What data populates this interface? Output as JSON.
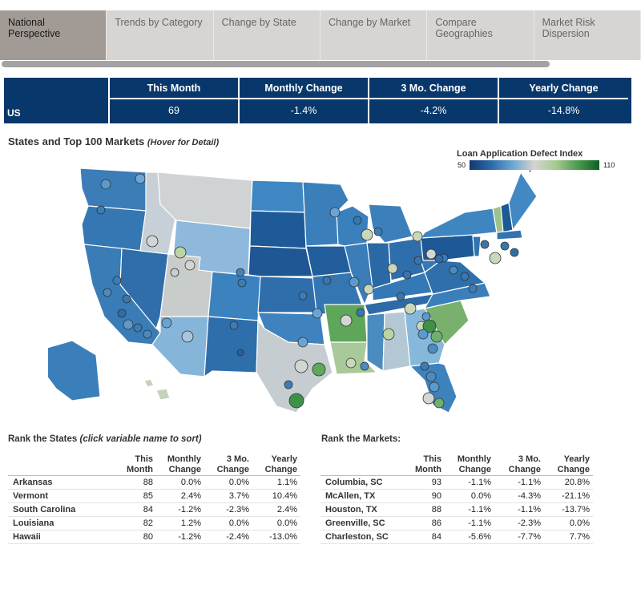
{
  "tabs": [
    {
      "label": "National Perspective",
      "active": true
    },
    {
      "label": "Trends by Category",
      "active": false
    },
    {
      "label": "Change by State",
      "active": false
    },
    {
      "label": "Change  by Market",
      "active": false
    },
    {
      "label": "Compare Geographies",
      "active": false
    },
    {
      "label": "Market Risk Dispersion",
      "active": false
    }
  ],
  "summary": {
    "row_label": "US",
    "columns": [
      {
        "header": "This Month",
        "value": "69"
      },
      {
        "header": "Monthly Change",
        "value": "-1.4%"
      },
      {
        "header": "3 Mo. Change",
        "value": "-4.2%"
      },
      {
        "header": "Yearly Change",
        "value": "-14.8%"
      }
    ]
  },
  "map": {
    "title": "States and Top 100 Markets",
    "hint": "(Hover for Detail)",
    "legend_title": "Loan Application Defect Index",
    "legend_min": "50",
    "legend_max": "110"
  },
  "colors": {
    "navy": "#08386b",
    "tab_active": "#a19a95",
    "tab_inactive": "#d7d4d2"
  },
  "rank_states": {
    "title": "Rank the States",
    "hint": "(click variable name to sort)",
    "headers": {
      "name": "",
      "this_month": "This Month",
      "monthly": "Monthly Change",
      "three_mo": "3 Mo. Change",
      "yearly": "Yearly Change"
    },
    "rows": [
      {
        "name": "Arkansas",
        "this_month": "88",
        "monthly": "0.0%",
        "three_mo": "0.0%",
        "yearly": "1.1%"
      },
      {
        "name": "Vermont",
        "this_month": "85",
        "monthly": "2.4%",
        "three_mo": "3.7%",
        "yearly": "10.4%"
      },
      {
        "name": "South Carolina",
        "this_month": "84",
        "monthly": "-1.2%",
        "three_mo": "-2.3%",
        "yearly": "2.4%"
      },
      {
        "name": "Louisiana",
        "this_month": "82",
        "monthly": "1.2%",
        "three_mo": "0.0%",
        "yearly": "0.0%"
      },
      {
        "name": "Hawaii",
        "this_month": "80",
        "monthly": "-1.2%",
        "three_mo": "-2.4%",
        "yearly": "-13.0%"
      }
    ]
  },
  "rank_markets": {
    "title": "Rank the Markets:",
    "headers": {
      "name": "",
      "this_month": "This Month",
      "monthly": "Monthly Change",
      "three_mo": "3 Mo. Change",
      "yearly": "Yearly Change"
    },
    "rows": [
      {
        "name": "Columbia, SC",
        "this_month": "93",
        "monthly": "-1.1%",
        "three_mo": "-1.1%",
        "yearly": "20.8%"
      },
      {
        "name": "McAllen, TX",
        "this_month": "90",
        "monthly": "0.0%",
        "three_mo": "-4.3%",
        "yearly": "-21.1%"
      },
      {
        "name": "Houston, TX",
        "this_month": "88",
        "monthly": "-1.1%",
        "three_mo": "-1.1%",
        "yearly": "-13.7%"
      },
      {
        "name": "Greenville, SC",
        "this_month": "86",
        "monthly": "-1.1%",
        "three_mo": "-2.3%",
        "yearly": "0.0%"
      },
      {
        "name": "Charleston, SC",
        "this_month": "84",
        "monthly": "-5.6%",
        "three_mo": "-7.7%",
        "yearly": "7.7%"
      }
    ]
  }
}
